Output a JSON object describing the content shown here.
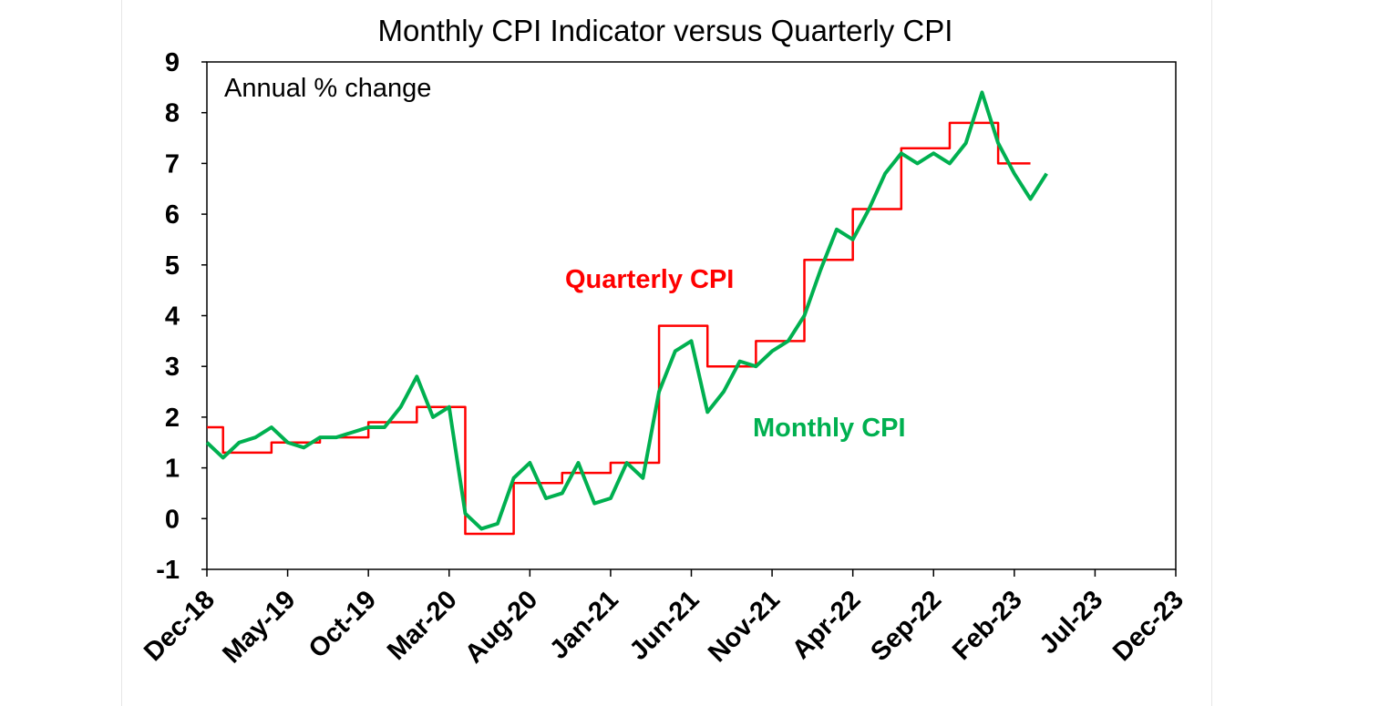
{
  "chart_data": {
    "type": "line",
    "title": "Monthly CPI Indicator versus Quarterly CPI",
    "annotation": "Annual % change",
    "ylim": [
      -1,
      9
    ],
    "yticks": [
      -1,
      0,
      1,
      2,
      3,
      4,
      5,
      6,
      7,
      8,
      9
    ],
    "xlim": [
      "Dec-18",
      "Dec-23"
    ],
    "xtick_labels": [
      "Dec-18",
      "May-19",
      "Oct-19",
      "Mar-20",
      "Aug-20",
      "Jan-21",
      "Jun-21",
      "Nov-21",
      "Apr-22",
      "Sep-22",
      "Feb-23",
      "Jul-23",
      "Dec-23"
    ],
    "grid": false,
    "legend": "inline labels",
    "series": [
      {
        "name": "Quarterly CPI",
        "color": "#ff0000",
        "style": "step",
        "x": [
          "Dec-18",
          "Jan-19",
          "Feb-19",
          "Mar-19",
          "Apr-19",
          "May-19",
          "Jun-19",
          "Jul-19",
          "Aug-19",
          "Sep-19",
          "Oct-19",
          "Nov-19",
          "Dec-19",
          "Jan-20",
          "Feb-20",
          "Mar-20",
          "Apr-20",
          "May-20",
          "Jun-20",
          "Jul-20",
          "Aug-20",
          "Sep-20",
          "Oct-20",
          "Nov-20",
          "Dec-20",
          "Jan-21",
          "Feb-21",
          "Mar-21",
          "Apr-21",
          "May-21",
          "Jun-21",
          "Jul-21",
          "Aug-21",
          "Sep-21",
          "Oct-21",
          "Nov-21",
          "Dec-21",
          "Jan-22",
          "Feb-22",
          "Mar-22",
          "Apr-22",
          "May-22",
          "Jun-22",
          "Jul-22",
          "Aug-22",
          "Sep-22",
          "Oct-22",
          "Nov-22",
          "Dec-22",
          "Jan-23",
          "Feb-23",
          "Mar-23"
        ],
        "y": [
          1.8,
          1.3,
          1.3,
          1.3,
          1.5,
          1.5,
          1.5,
          1.6,
          1.6,
          1.6,
          1.9,
          1.9,
          1.9,
          2.2,
          2.2,
          2.2,
          -0.3,
          -0.3,
          -0.3,
          0.7,
          0.7,
          0.7,
          0.9,
          0.9,
          0.9,
          1.1,
          1.1,
          1.1,
          3.8,
          3.8,
          3.8,
          3.0,
          3.0,
          3.0,
          3.5,
          3.5,
          3.5,
          5.1,
          5.1,
          5.1,
          6.1,
          6.1,
          6.1,
          7.3,
          7.3,
          7.3,
          7.8,
          7.8,
          7.8,
          7.0,
          7.0,
          7.0
        ]
      },
      {
        "name": "Monthly CPI",
        "color": "#00b050",
        "style": "line",
        "x": [
          "Dec-18",
          "Jan-19",
          "Feb-19",
          "Mar-19",
          "Apr-19",
          "May-19",
          "Jun-19",
          "Jul-19",
          "Aug-19",
          "Sep-19",
          "Oct-19",
          "Nov-19",
          "Dec-19",
          "Jan-20",
          "Feb-20",
          "Mar-20",
          "Apr-20",
          "May-20",
          "Jun-20",
          "Jul-20",
          "Aug-20",
          "Sep-20",
          "Oct-20",
          "Nov-20",
          "Dec-20",
          "Jan-21",
          "Feb-21",
          "Mar-21",
          "Apr-21",
          "May-21",
          "Jun-21",
          "Jul-21",
          "Aug-21",
          "Sep-21",
          "Oct-21",
          "Nov-21",
          "Dec-21",
          "Jan-22",
          "Feb-22",
          "Mar-22",
          "Apr-22",
          "May-22",
          "Jun-22",
          "Jul-22",
          "Aug-22",
          "Sep-22",
          "Oct-22",
          "Nov-22",
          "Dec-22",
          "Jan-23",
          "Feb-23",
          "Mar-23",
          "Apr-23"
        ],
        "y": [
          1.5,
          1.2,
          1.5,
          1.6,
          1.8,
          1.5,
          1.4,
          1.6,
          1.6,
          1.7,
          1.8,
          1.8,
          2.2,
          2.8,
          2.0,
          2.2,
          0.1,
          -0.2,
          -0.1,
          0.8,
          1.1,
          0.4,
          0.5,
          1.1,
          0.3,
          0.4,
          1.1,
          0.8,
          2.5,
          3.3,
          3.5,
          2.1,
          2.5,
          3.1,
          3.0,
          3.3,
          3.5,
          4.0,
          4.9,
          5.7,
          5.5,
          6.1,
          6.8,
          7.2,
          7.0,
          7.2,
          7.0,
          7.4,
          8.4,
          7.4,
          6.8,
          6.3,
          6.8
        ]
      }
    ]
  }
}
